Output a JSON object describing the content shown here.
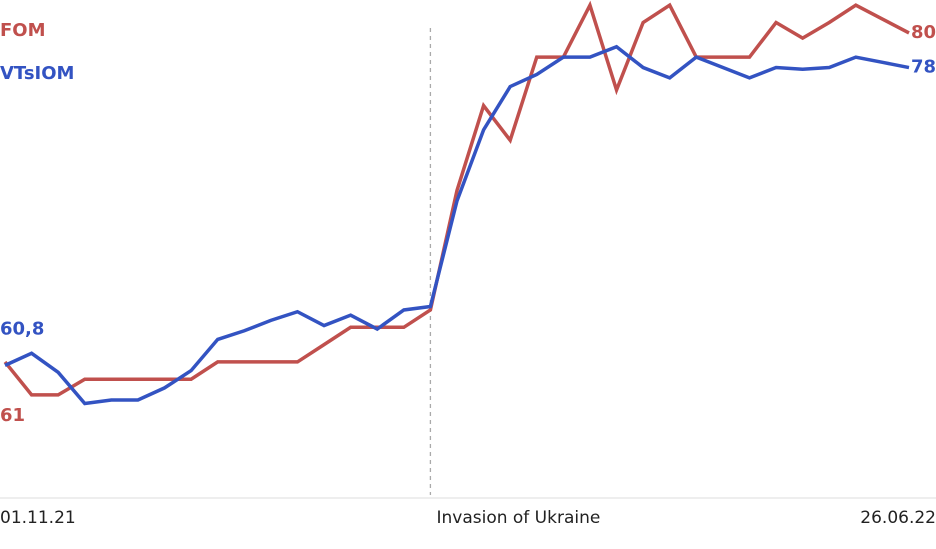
{
  "chart_data": {
    "type": "line",
    "categories": [
      "01.11.21",
      null,
      null,
      null,
      null,
      null,
      null,
      null,
      null,
      null,
      null,
      null,
      null,
      null,
      null,
      null,
      "Invasion of Ukraine",
      null,
      null,
      null,
      null,
      null,
      null,
      null,
      null,
      null,
      null,
      null,
      null,
      null,
      null,
      null,
      null,
      null,
      "26.06.22"
    ],
    "vline": {
      "category": 16
    },
    "ylim": [
      53.2,
      81.9
    ],
    "series": [
      {
        "name": "FOM",
        "color": "#c0504d",
        "values": [
          61,
          59.1,
          59.1,
          60,
          60,
          60,
          60,
          60,
          61,
          61,
          61,
          61,
          62,
          63,
          63,
          63,
          64,
          70.9,
          75.8,
          73.8,
          78.6,
          78.6,
          81.6,
          76.7,
          80.6,
          81.6,
          78.6,
          78.6,
          78.6,
          80.6,
          79.7,
          80.6,
          81.6,
          80.8,
          80
        ],
        "value_labels": [
          "61",
          null,
          null,
          null,
          null,
          null,
          null,
          null,
          null,
          null,
          null,
          null,
          null,
          null,
          null,
          null,
          null,
          null,
          null,
          null,
          null,
          null,
          null,
          null,
          null,
          null,
          null,
          null,
          null,
          null,
          null,
          null,
          null,
          null,
          "80"
        ]
      },
      {
        "name": "VTsIOM",
        "color": "#3353c2",
        "values": [
          60.8,
          61.5,
          60.4,
          58.6,
          58.8,
          58.8,
          59.5,
          60.5,
          62.3,
          62.8,
          63.4,
          63.9,
          63.1,
          63.7,
          62.9,
          64,
          64.2,
          70.3,
          74.4,
          76.9,
          77.6,
          78.6,
          78.6,
          79.2,
          78,
          77.4,
          78.6,
          78,
          77.4,
          78,
          77.9,
          78,
          78.6,
          78.3,
          78
        ],
        "value_labels": [
          "60,8",
          null,
          null,
          null,
          null,
          null,
          null,
          null,
          null,
          null,
          null,
          null,
          null,
          null,
          null,
          null,
          null,
          null,
          null,
          null,
          null,
          null,
          null,
          null,
          null,
          null,
          null,
          null,
          null,
          null,
          null,
          null,
          null,
          null,
          "78"
        ]
      }
    ]
  }
}
